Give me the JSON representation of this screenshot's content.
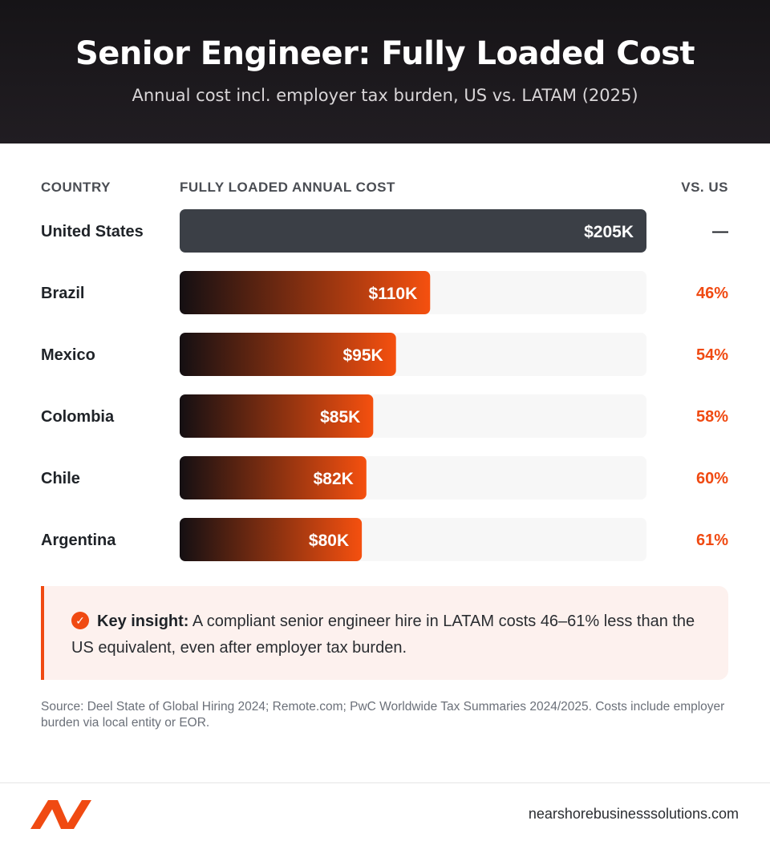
{
  "header": {
    "title": "Senior Engineer: Fully Loaded Cost",
    "subtitle": "Annual cost incl. employer tax burden, US vs. LATAM (2025)"
  },
  "columns": {
    "country": "COUNTRY",
    "cost": "FULLY LOADED ANNUAL COST",
    "vs": "VS. US"
  },
  "chart_data": {
    "type": "bar",
    "orientation": "horizontal",
    "categories": [
      "United States",
      "Brazil",
      "Mexico",
      "Colombia",
      "Chile",
      "Argentina"
    ],
    "values": [
      205,
      110,
      95,
      85,
      82,
      80
    ],
    "value_labels": [
      "$205K",
      "$110K",
      "$95K",
      "$85K",
      "$82K",
      "$80K"
    ],
    "vs_us": [
      "—",
      "46%",
      "54%",
      "58%",
      "60%",
      "61%"
    ],
    "xlim": [
      0,
      205
    ],
    "unit": "$K",
    "colors": {
      "us_bar": "#3b3f46",
      "latam_start": "#140f12",
      "latam_end": "#f5500f",
      "track": "#f7f7f7",
      "accent": "#f04a12"
    }
  },
  "insight": {
    "icon": "check-circle-icon",
    "lead": "Key insight:",
    "text": "A compliant senior engineer hire in LATAM costs 46–61% less than the US equivalent, even after employer tax burden."
  },
  "source": "Source: Deel State of Global Hiring 2024; Remote.com; PwC Worldwide Tax Summaries 2024/2025. Costs include employer burden via local entity or EOR.",
  "footer": {
    "logo": "nbs-logo",
    "site": "nearshorebusinesssolutions.com"
  }
}
